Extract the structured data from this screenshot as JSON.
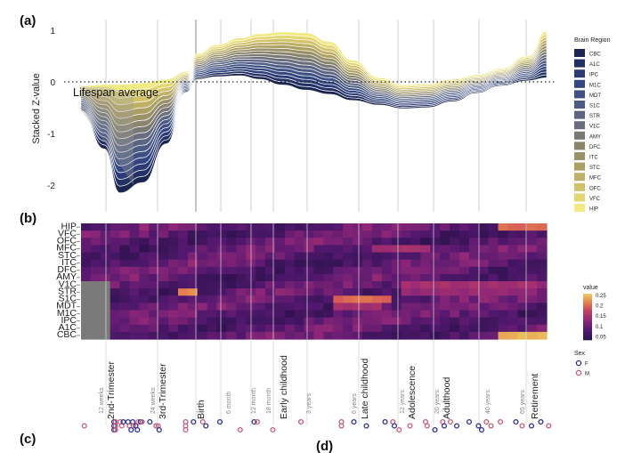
{
  "panel_labels": {
    "a": "(a)",
    "b": "(b)",
    "c": "(c)",
    "d": "(d)"
  },
  "chart_data": [
    {
      "type": "area",
      "panel": "(a)",
      "title": "",
      "xlabel": "",
      "ylabel": "Stacked Z-value",
      "ylim": [
        -2.2,
        1.05
      ],
      "yticks": [
        "1",
        "0",
        "-1",
        "-2"
      ],
      "annotation": "Lifespan average",
      "legend": {
        "title": "Brain Region",
        "placement": "right",
        "entries": [
          "CBC",
          "A1C",
          "IPC",
          "M1C",
          "MDT",
          "S1C",
          "STR",
          "V1C",
          "AMY",
          "DFC",
          "ITC",
          "STC",
          "MFC",
          "OFC",
          "VFC",
          "HIP"
        ],
        "colors": [
          "#1b2550",
          "#233063",
          "#2c3b76",
          "#34467f",
          "#3f5184",
          "#4c5b84",
          "#5b6582",
          "#6a6d7d",
          "#7a7874",
          "#8a846d",
          "#9a9168",
          "#ac9f64",
          "#bfb065",
          "#d2c36a",
          "#e4d672",
          "#f2ea82"
        ]
      },
      "x": [
        0,
        0.6,
        1.0,
        1.6,
        2.2,
        2.7,
        3.0,
        3.5,
        4.1,
        4.6,
        5.2,
        5.8,
        6.4,
        7.0,
        7.7,
        8.3,
        8.9,
        9.6,
        10.2,
        10.8,
        11.5,
        12.0
      ],
      "envelope_top": [
        -0.08,
        -0.05,
        -0.05,
        -0.02,
        0.05,
        0.2,
        0.55,
        0.72,
        0.85,
        0.93,
        0.97,
        0.95,
        0.78,
        0.42,
        0.08,
        -0.06,
        -0.04,
        0.05,
        0.14,
        0.26,
        0.5,
        0.98
      ],
      "envelope_bottom": [
        -0.55,
        -1.3,
        -2.15,
        -1.95,
        -1.2,
        -0.2,
        0.05,
        0.1,
        0.12,
        0.05,
        -0.06,
        -0.16,
        -0.24,
        -0.36,
        -0.45,
        -0.52,
        -0.5,
        -0.38,
        -0.22,
        -0.08,
        0.02,
        0.08
      ],
      "event_markers": [
        "12 weeks",
        "2nd-Trimester",
        "24 weeks",
        "3rd-Trimester",
        "Birth",
        "6 month",
        "12 month",
        "18 month",
        "Early childhood",
        "3 years",
        "6 years",
        "Late childhood",
        "12 years",
        "Adolescence",
        "20 years",
        "Adulthood",
        "40 years",
        "65 years",
        "Retirement"
      ]
    },
    {
      "type": "heatmap",
      "panel": "(b)",
      "title": "",
      "xlabel": "",
      "ylabel": "",
      "rows": [
        "HIP",
        "VFC",
        "OFC",
        "MFC",
        "STC",
        "ITC",
        "DFC",
        "AMY",
        "V1C",
        "STR",
        "S1C",
        "MDT",
        "M1C",
        "IPC",
        "A1C",
        "CBC"
      ],
      "n_cols": 48,
      "missing_cols_before_12_weeks": true,
      "colorbar": {
        "title": "value",
        "ticks": [
          "0.25",
          "0.2",
          "0.15",
          "0.1",
          "0.05"
        ],
        "range": [
          0.03,
          0.27
        ]
      },
      "hotspots": [
        {
          "row": "STR",
          "col_from": 10,
          "col_to": 11,
          "value": 0.24
        },
        {
          "row": "S1C",
          "col_from": 26,
          "col_to": 31,
          "value": 0.22
        },
        {
          "row": "MDT",
          "col_from": 26,
          "col_to": 30,
          "value": 0.16
        },
        {
          "row": "V1C",
          "col_from": 33,
          "col_to": 46,
          "value": 0.16
        },
        {
          "row": "STR",
          "col_from": 33,
          "col_to": 46,
          "value": 0.15
        },
        {
          "row": "CBC",
          "col_from": 43,
          "col_to": 47,
          "value": 0.27
        },
        {
          "row": "HIP",
          "col_from": 43,
          "col_to": 47,
          "value": 0.22
        },
        {
          "row": "MFC",
          "col_from": 30,
          "col_to": 35,
          "value": 0.16
        }
      ]
    },
    {
      "type": "scatter",
      "panel": "(c)",
      "title": "",
      "legend": {
        "title": "Sex",
        "entries": [
          "F",
          "M"
        ],
        "colors": [
          "#2a2f8f",
          "#c85a78"
        ]
      },
      "x_labels": [
        "12 weeks",
        "2nd-Trimester",
        "24 weeks",
        "3rd-Trimester",
        "Birth",
        "6 month",
        "12 month",
        "18 month",
        "Early childhood",
        "3 years",
        "6 years",
        "Late childhood",
        "12 years",
        "Adolescence",
        "20 years",
        "Adulthood",
        "40 years",
        "65 years",
        "Retirement"
      ],
      "samples": [
        {
          "x": 0.05,
          "sex": "M",
          "row": 1
        },
        {
          "x": 1.0,
          "sex": "F",
          "row": 0
        },
        {
          "x": 1.0,
          "sex": "F",
          "row": 1
        },
        {
          "x": 1.0,
          "sex": "F",
          "row": 2
        },
        {
          "x": 1.05,
          "sex": "M",
          "row": 0
        },
        {
          "x": 1.05,
          "sex": "M",
          "row": 1
        },
        {
          "x": 1.05,
          "sex": "M",
          "row": 2
        },
        {
          "x": 1.2,
          "sex": "M",
          "row": 0
        },
        {
          "x": 1.25,
          "sex": "M",
          "row": 1
        },
        {
          "x": 1.3,
          "sex": "F",
          "row": 0
        },
        {
          "x": 1.45,
          "sex": "F",
          "row": 0
        },
        {
          "x": 1.5,
          "sex": "M",
          "row": 1
        },
        {
          "x": 1.55,
          "sex": "F",
          "row": 2
        },
        {
          "x": 1.6,
          "sex": "F",
          "row": 0
        },
        {
          "x": 1.62,
          "sex": "M",
          "row": 1
        },
        {
          "x": 1.7,
          "sex": "F",
          "row": 1
        },
        {
          "x": 1.75,
          "sex": "F",
          "row": 2
        },
        {
          "x": 1.78,
          "sex": "M",
          "row": 0
        },
        {
          "x": 1.85,
          "sex": "F",
          "row": 0
        },
        {
          "x": 1.9,
          "sex": "M",
          "row": 0
        },
        {
          "x": 2.15,
          "sex": "F",
          "row": 0
        },
        {
          "x": 2.35,
          "sex": "M",
          "row": 1
        },
        {
          "x": 2.42,
          "sex": "M",
          "row": 1
        },
        {
          "x": 2.45,
          "sex": "F",
          "row": 2
        },
        {
          "x": 3.3,
          "sex": "M",
          "row": 0
        },
        {
          "x": 3.3,
          "sex": "M",
          "row": 1
        },
        {
          "x": 3.3,
          "sex": "M",
          "row": 2
        },
        {
          "x": 3.55,
          "sex": "F",
          "row": 0
        },
        {
          "x": 3.85,
          "sex": "M",
          "row": 0
        },
        {
          "x": 3.95,
          "sex": "F",
          "row": 1
        },
        {
          "x": 4.4,
          "sex": "F",
          "row": 0
        },
        {
          "x": 5.05,
          "sex": "M",
          "row": 2
        },
        {
          "x": 5.5,
          "sex": "F",
          "row": 0
        },
        {
          "x": 5.6,
          "sex": "M",
          "row": 0
        },
        {
          "x": 6.1,
          "sex": "M",
          "row": 2
        },
        {
          "x": 7.0,
          "sex": "M",
          "row": 0
        },
        {
          "x": 8.3,
          "sex": "M",
          "row": 0
        },
        {
          "x": 8.3,
          "sex": "M",
          "row": 1
        },
        {
          "x": 8.7,
          "sex": "F",
          "row": 0
        },
        {
          "x": 9.1,
          "sex": "F",
          "row": 1
        },
        {
          "x": 9.7,
          "sex": "F",
          "row": 0
        },
        {
          "x": 9.95,
          "sex": "M",
          "row": 0
        },
        {
          "x": 10.0,
          "sex": "F",
          "row": 1
        },
        {
          "x": 10.15,
          "sex": "M",
          "row": 2
        },
        {
          "x": 10.5,
          "sex": "M",
          "row": 1
        },
        {
          "x": 11.0,
          "sex": "M",
          "row": 0
        },
        {
          "x": 11.05,
          "sex": "M",
          "row": 1
        },
        {
          "x": 11.3,
          "sex": "F",
          "row": 2
        },
        {
          "x": 11.55,
          "sex": "M",
          "row": 0
        },
        {
          "x": 11.6,
          "sex": "F",
          "row": 1
        },
        {
          "x": 11.8,
          "sex": "M",
          "row": 0
        },
        {
          "x": 12.0,
          "sex": "F",
          "row": 1
        },
        {
          "x": 12.4,
          "sex": "F",
          "row": 0
        },
        {
          "x": 12.7,
          "sex": "F",
          "row": 1
        },
        {
          "x": 12.8,
          "sex": "F",
          "row": 2
        },
        {
          "x": 12.95,
          "sex": "M",
          "row": 0
        },
        {
          "x": 13.1,
          "sex": "M",
          "row": 1
        },
        {
          "x": 13.4,
          "sex": "M",
          "row": 0
        },
        {
          "x": 13.9,
          "sex": "F",
          "row": 0
        },
        {
          "x": 14.1,
          "sex": "M",
          "row": 1
        },
        {
          "x": 14.4,
          "sex": "F",
          "row": 1
        },
        {
          "x": 14.7,
          "sex": "F",
          "row": 0
        },
        {
          "x": 14.95,
          "sex": "M",
          "row": 1
        }
      ]
    }
  ]
}
